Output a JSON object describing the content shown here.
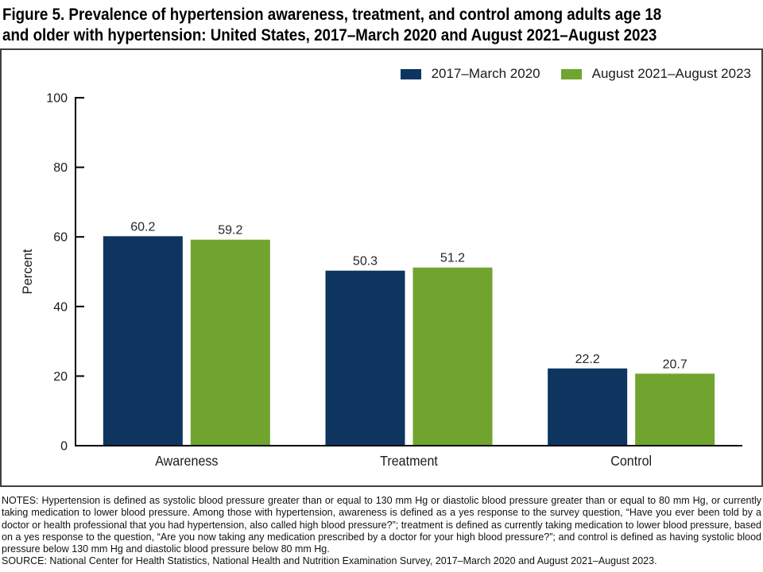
{
  "title": {
    "lines": [
      "Figure 5. Prevalence of hypertension awareness, treatment, and control among adults age 18",
      "and older with hypertension: United States, 2017–March 2020 and August 2021–August 2023"
    ]
  },
  "chart_data": {
    "type": "bar",
    "title": "",
    "categories": [
      "Awareness",
      "Treatment",
      "Control"
    ],
    "series": [
      {
        "name": "2017–March 2020",
        "color": "#0d3560",
        "values": [
          60.2,
          50.3,
          22.2
        ]
      },
      {
        "name": "August 2021–August 2023",
        "color": "#70a42f",
        "values": [
          59.2,
          51.2,
          20.7
        ]
      }
    ],
    "xlabel": "",
    "ylabel": "Percent",
    "ylim": [
      0,
      100
    ],
    "yticks": [
      0,
      20,
      40,
      60,
      80,
      100
    ],
    "grid": false,
    "legend_position": "top-right",
    "value_labels": true,
    "bar_value_decimals": 1,
    "axis_color": "#000000",
    "tick_direction": "inward"
  },
  "notes": "NOTES: Hypertension is defined as systolic blood pressure greater than or equal to 130 mm Hg or diastolic blood pressure greater than or equal to 80 mm Hg, or currently taking medication to lower blood pressure. Among those with hypertension, awareness is defined as a yes response to the survey question, “Have you ever been told by a doctor or health professional that you had hypertension, also called high blood pressure?”; treatment is defined as currently taking medication to lower blood pressure, based on a yes response to the question, “Are you now taking any medication prescribed by a doctor for your high blood pressure?”; and control is defined as having systolic blood pressure below 130 mm Hg and diastolic blood pressure below 80 mm Hg.",
  "source": "SOURCE: National Center for Health Statistics, National Health and Nutrition Examination Survey, 2017–March 2020 and August 2021–August 2023."
}
